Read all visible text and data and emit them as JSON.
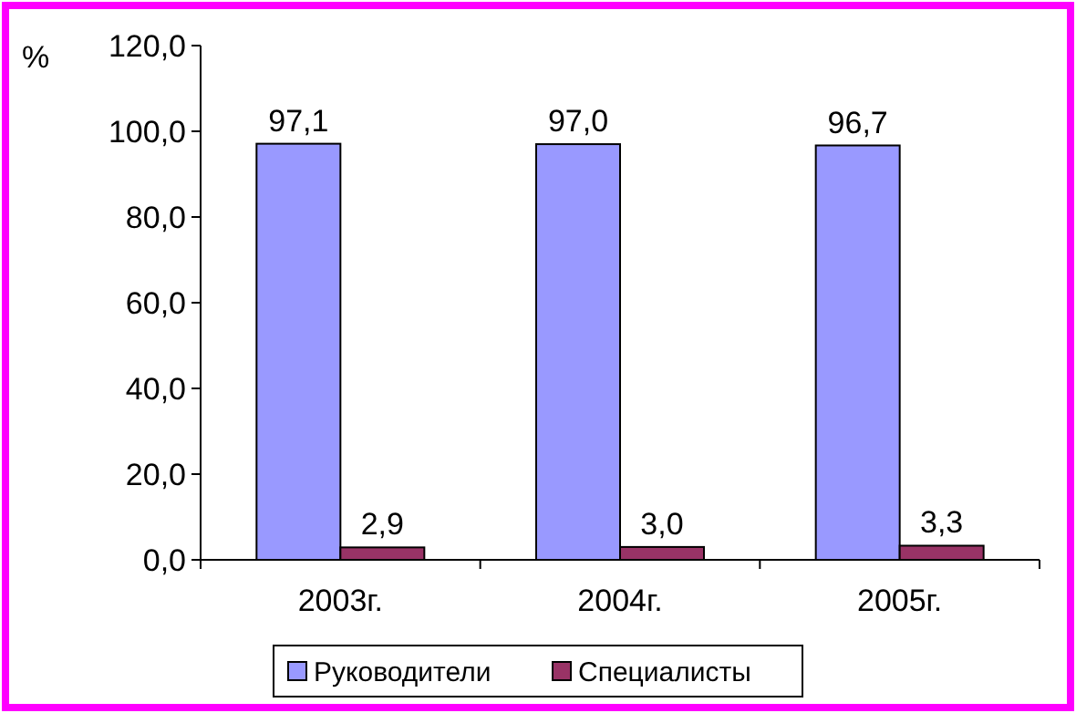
{
  "chart_data": {
    "type": "bar",
    "ylabel": "%",
    "categories": [
      "2003г.",
      "2004г.",
      "2005г."
    ],
    "series": [
      {
        "name": "Руководители",
        "color": "#9999ff",
        "values": [
          97.1,
          97.0,
          96.7
        ],
        "value_labels": [
          "97,1",
          "97,0",
          "96,7"
        ]
      },
      {
        "name": "Специалисты",
        "color": "#993366",
        "values": [
          2.9,
          3.0,
          3.3
        ],
        "value_labels": [
          "2,9",
          "3,0",
          "3,3"
        ]
      }
    ],
    "ylim": [
      0,
      120
    ],
    "yticks": [
      {
        "value": 0,
        "label": "0,0"
      },
      {
        "value": 20,
        "label": "20,0"
      },
      {
        "value": 40,
        "label": "40,0"
      },
      {
        "value": 60,
        "label": "60,0"
      },
      {
        "value": 80,
        "label": "80,0"
      },
      {
        "value": 100,
        "label": "100,0"
      },
      {
        "value": 120,
        "label": "120,0"
      }
    ],
    "legend": "bottom",
    "grid": false
  }
}
